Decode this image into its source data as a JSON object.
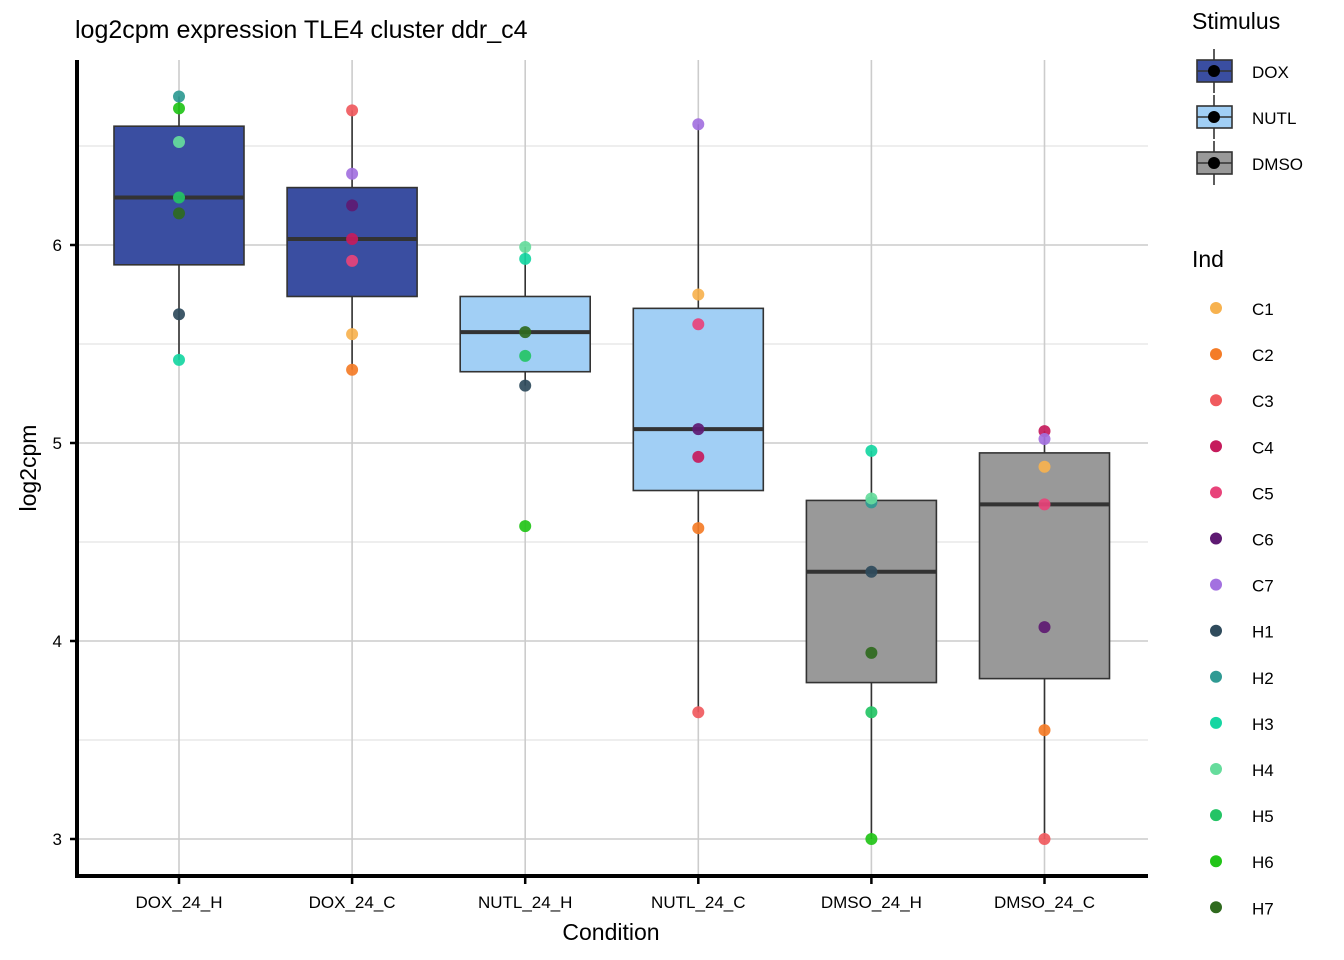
{
  "chart_data": {
    "type": "box",
    "title": "log2cpm expression TLE4 cluster ddr_c4",
    "xlabel": "Condition",
    "ylabel": "log2cpm",
    "ylim": [
      2.84,
      6.93
    ],
    "yticks": [
      3,
      4,
      5,
      6
    ],
    "grid": true,
    "categories": [
      "DOX_24_H",
      "DOX_24_C",
      "NUTL_24_H",
      "NUTL_24_C",
      "DMSO_24_H",
      "DMSO_24_C"
    ],
    "boxes": [
      {
        "category": "DOX_24_H",
        "stimulus": "DOX",
        "q1": 5.9,
        "median": 6.24,
        "q3": 6.6,
        "whisker_low": 5.42,
        "whisker_high": 6.75
      },
      {
        "category": "DOX_24_C",
        "stimulus": "DOX",
        "q1": 5.74,
        "median": 6.03,
        "q3": 6.29,
        "whisker_low": 5.37,
        "whisker_high": 6.68
      },
      {
        "category": "NUTL_24_H",
        "stimulus": "NUTL",
        "q1": 5.36,
        "median": 5.56,
        "q3": 5.74,
        "whisker_low": 5.29,
        "whisker_high": 5.99
      },
      {
        "category": "NUTL_24_C",
        "stimulus": "NUTL",
        "q1": 4.76,
        "median": 5.07,
        "q3": 5.68,
        "whisker_low": 3.64,
        "whisker_high": 6.61
      },
      {
        "category": "DMSO_24_H",
        "stimulus": "DMSO",
        "q1": 3.79,
        "median": 4.35,
        "q3": 4.71,
        "whisker_low": 3.0,
        "whisker_high": 4.96
      },
      {
        "category": "DMSO_24_C",
        "stimulus": "DMSO",
        "q1": 3.81,
        "median": 4.69,
        "q3": 4.95,
        "whisker_low": 3.0,
        "whisker_high": 5.06
      }
    ],
    "points": [
      {
        "category": "DOX_24_H",
        "ind": "H2",
        "value": 6.75
      },
      {
        "category": "DOX_24_H",
        "ind": "H6",
        "value": 6.69
      },
      {
        "category": "DOX_24_H",
        "ind": "H4",
        "value": 6.52
      },
      {
        "category": "DOX_24_H",
        "ind": "H5",
        "value": 6.24
      },
      {
        "category": "DOX_24_H",
        "ind": "H7",
        "value": 6.16
      },
      {
        "category": "DOX_24_H",
        "ind": "H1",
        "value": 5.65
      },
      {
        "category": "DOX_24_H",
        "ind": "H3",
        "value": 5.42
      },
      {
        "category": "DOX_24_C",
        "ind": "C3",
        "value": 6.68
      },
      {
        "category": "DOX_24_C",
        "ind": "C7",
        "value": 6.36
      },
      {
        "category": "DOX_24_C",
        "ind": "C6",
        "value": 6.2
      },
      {
        "category": "DOX_24_C",
        "ind": "C4",
        "value": 6.03
      },
      {
        "category": "DOX_24_C",
        "ind": "C5",
        "value": 5.92
      },
      {
        "category": "DOX_24_C",
        "ind": "C1",
        "value": 5.55
      },
      {
        "category": "DOX_24_C",
        "ind": "C2",
        "value": 5.37
      },
      {
        "category": "NUTL_24_H",
        "ind": "H4",
        "value": 5.99
      },
      {
        "category": "NUTL_24_H",
        "ind": "H3",
        "value": 5.93
      },
      {
        "category": "NUTL_24_H",
        "ind": "H7",
        "value": 5.56
      },
      {
        "category": "NUTL_24_H",
        "ind": "H5",
        "value": 5.44
      },
      {
        "category": "NUTL_24_H",
        "ind": "H1",
        "value": 5.29
      },
      {
        "category": "NUTL_24_H",
        "ind": "H6",
        "value": 4.58
      },
      {
        "category": "NUTL_24_C",
        "ind": "C7",
        "value": 6.61
      },
      {
        "category": "NUTL_24_C",
        "ind": "C1",
        "value": 5.75
      },
      {
        "category": "NUTL_24_C",
        "ind": "C5",
        "value": 5.6
      },
      {
        "category": "NUTL_24_C",
        "ind": "C6",
        "value": 5.07
      },
      {
        "category": "NUTL_24_C",
        "ind": "C4",
        "value": 4.93
      },
      {
        "category": "NUTL_24_C",
        "ind": "C2",
        "value": 4.57
      },
      {
        "category": "NUTL_24_C",
        "ind": "C3",
        "value": 3.64
      },
      {
        "category": "DMSO_24_H",
        "ind": "H3",
        "value": 4.96
      },
      {
        "category": "DMSO_24_H",
        "ind": "H2",
        "value": 4.7
      },
      {
        "category": "DMSO_24_H",
        "ind": "H4",
        "value": 4.72
      },
      {
        "category": "DMSO_24_H",
        "ind": "H1",
        "value": 4.35
      },
      {
        "category": "DMSO_24_H",
        "ind": "H7",
        "value": 3.94
      },
      {
        "category": "DMSO_24_H",
        "ind": "H5",
        "value": 3.64
      },
      {
        "category": "DMSO_24_H",
        "ind": "H6",
        "value": 3.0
      },
      {
        "category": "DMSO_24_C",
        "ind": "C4",
        "value": 5.06
      },
      {
        "category": "DMSO_24_C",
        "ind": "C7",
        "value": 5.02
      },
      {
        "category": "DMSO_24_C",
        "ind": "C1",
        "value": 4.88
      },
      {
        "category": "DMSO_24_C",
        "ind": "C5",
        "value": 4.69
      },
      {
        "category": "DMSO_24_C",
        "ind": "C6",
        "value": 4.07
      },
      {
        "category": "DMSO_24_C",
        "ind": "C2",
        "value": 3.55
      },
      {
        "category": "DMSO_24_C",
        "ind": "C3",
        "value": 3.0
      }
    ],
    "legend": {
      "placement": "right",
      "stimulus": {
        "title": "Stimulus",
        "items": [
          {
            "label": "DOX",
            "color": "#3a4ea1"
          },
          {
            "label": "NUTL",
            "color": "#a1cff5"
          },
          {
            "label": "DMSO",
            "color": "#999999"
          }
        ]
      },
      "ind": {
        "title": "Ind",
        "items": [
          {
            "label": "C1",
            "color": "#f7b24f"
          },
          {
            "label": "C2",
            "color": "#f47c27"
          },
          {
            "label": "C3",
            "color": "#f05a5e"
          },
          {
            "label": "C4",
            "color": "#c51b5c"
          },
          {
            "label": "C5",
            "color": "#e8437a"
          },
          {
            "label": "C6",
            "color": "#5e1a72"
          },
          {
            "label": "C7",
            "color": "#a371e0"
          },
          {
            "label": "H1",
            "color": "#2f4b5c"
          },
          {
            "label": "H2",
            "color": "#2f9a93"
          },
          {
            "label": "H3",
            "color": "#16d6a2"
          },
          {
            "label": "H4",
            "color": "#66dc9c"
          },
          {
            "label": "H5",
            "color": "#24c465"
          },
          {
            "label": "H6",
            "color": "#22c418"
          },
          {
            "label": "H7",
            "color": "#2f6a1e"
          }
        ]
      }
    }
  }
}
